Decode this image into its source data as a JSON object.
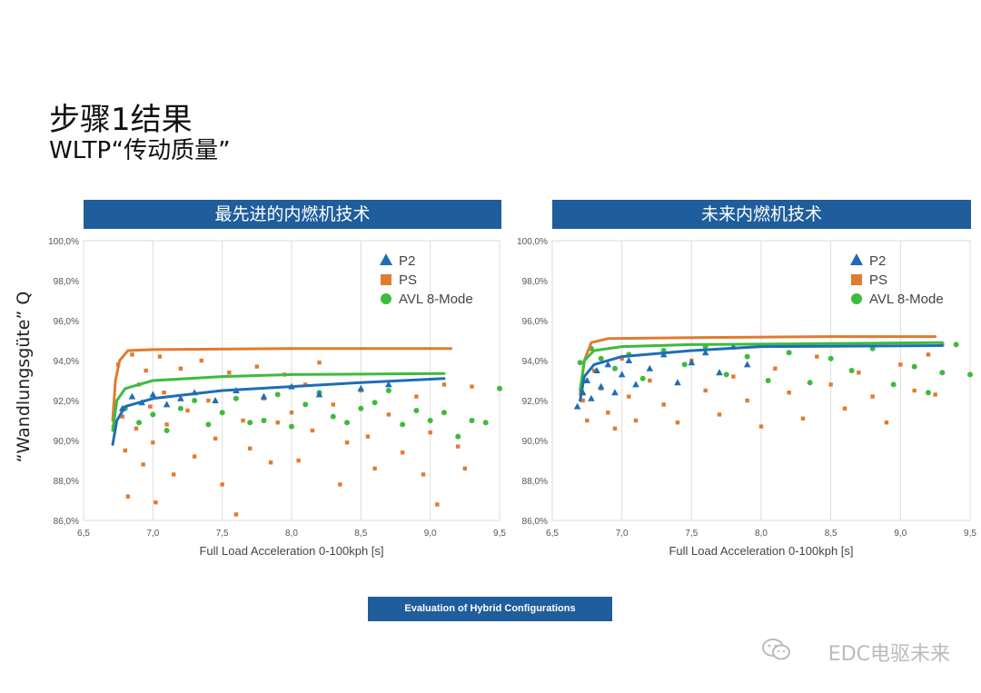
{
  "slide": {
    "title": "步骤1结果",
    "subtitle": "WLTP“传动质量”",
    "y_axis_label": "“Wandlungsgüte” Q",
    "footer": "Evaluation of Hybrid Configurations",
    "watermark": "EDC电驱未来"
  },
  "chart_data": [
    {
      "type": "scatter",
      "title": "最先进的内燃机技术",
      "xlabel": "Full Load Acceleration 0-100kph [s]",
      "ylabel": "“Wandlungsgüte” Q",
      "xlim": [
        6.5,
        9.5
      ],
      "ylim": [
        86.0,
        100.0
      ],
      "xticks": [
        "6,5",
        "7,0",
        "7,5",
        "8,0",
        "8,5",
        "9,0",
        "9,5"
      ],
      "yticks": [
        "86,0%",
        "88,0%",
        "90,0%",
        "92,0%",
        "94,0%",
        "96,0%",
        "98,0%",
        "100,0%"
      ],
      "grid": "vertical",
      "legend": "top-right",
      "series": [
        {
          "name": "P2",
          "marker": "triangle",
          "color": "#1f6db5",
          "points": [
            [
              6.78,
              91.6
            ],
            [
              6.85,
              92.2
            ],
            [
              6.92,
              91.9
            ],
            [
              7.0,
              92.3
            ],
            [
              7.1,
              91.8
            ],
            [
              7.2,
              92.1
            ],
            [
              7.3,
              92.4
            ],
            [
              7.45,
              92.0
            ],
            [
              7.6,
              92.5
            ],
            [
              7.8,
              92.2
            ],
            [
              8.0,
              92.7
            ],
            [
              8.2,
              92.3
            ],
            [
              8.5,
              92.6
            ],
            [
              8.7,
              92.8
            ]
          ],
          "fit": [
            [
              6.71,
              89.8
            ],
            [
              6.74,
              91.0
            ],
            [
              6.8,
              91.7
            ],
            [
              7.0,
              92.1
            ],
            [
              7.5,
              92.5
            ],
            [
              8.0,
              92.7
            ],
            [
              8.5,
              92.9
            ],
            [
              9.1,
              93.1
            ]
          ]
        },
        {
          "name": "PS",
          "marker": "square",
          "color": "#e07b31",
          "points": [
            [
              6.75,
              93.8
            ],
            [
              6.78,
              91.2
            ],
            [
              6.8,
              89.5
            ],
            [
              6.82,
              87.2
            ],
            [
              6.85,
              94.3
            ],
            [
              6.88,
              90.6
            ],
            [
              6.9,
              92.8
            ],
            [
              6.93,
              88.8
            ],
            [
              6.95,
              93.5
            ],
            [
              6.98,
              91.7
            ],
            [
              7.0,
              89.9
            ],
            [
              7.02,
              86.9
            ],
            [
              7.05,
              94.2
            ],
            [
              7.08,
              92.4
            ],
            [
              7.1,
              90.8
            ],
            [
              7.15,
              88.3
            ],
            [
              7.2,
              93.6
            ],
            [
              7.25,
              91.5
            ],
            [
              7.3,
              89.2
            ],
            [
              7.35,
              94.0
            ],
            [
              7.4,
              92.0
            ],
            [
              7.45,
              90.1
            ],
            [
              7.5,
              87.8
            ],
            [
              7.55,
              93.4
            ],
            [
              7.6,
              86.3
            ],
            [
              7.65,
              91.0
            ],
            [
              7.7,
              89.6
            ],
            [
              7.75,
              93.7
            ],
            [
              7.8,
              92.1
            ],
            [
              7.85,
              88.9
            ],
            [
              7.9,
              90.9
            ],
            [
              7.95,
              93.3
            ],
            [
              8.0,
              91.4
            ],
            [
              8.05,
              89.0
            ],
            [
              8.1,
              92.8
            ],
            [
              8.15,
              90.5
            ],
            [
              8.2,
              93.9
            ],
            [
              8.3,
              91.8
            ],
            [
              8.35,
              87.8
            ],
            [
              8.4,
              89.9
            ],
            [
              8.5,
              92.5
            ],
            [
              8.55,
              90.2
            ],
            [
              8.6,
              88.6
            ],
            [
              8.7,
              91.3
            ],
            [
              8.8,
              89.4
            ],
            [
              8.9,
              92.2
            ],
            [
              8.95,
              88.3
            ],
            [
              9.0,
              90.4
            ],
            [
              9.05,
              86.8
            ],
            [
              9.1,
              92.8
            ],
            [
              9.2,
              89.7
            ],
            [
              9.25,
              88.6
            ],
            [
              9.3,
              92.7
            ]
          ],
          "fit": [
            [
              6.71,
              91.0
            ],
            [
              6.73,
              93.0
            ],
            [
              6.76,
              94.0
            ],
            [
              6.82,
              94.5
            ],
            [
              7.0,
              94.55
            ],
            [
              8.0,
              94.6
            ],
            [
              9.15,
              94.6
            ]
          ]
        },
        {
          "name": "AVL 8-Mode",
          "marker": "circle",
          "color": "#3dbb3d",
          "points": [
            [
              6.72,
              90.7
            ],
            [
              6.8,
              91.6
            ],
            [
              6.9,
              90.9
            ],
            [
              7.0,
              91.3
            ],
            [
              7.1,
              90.5
            ],
            [
              7.2,
              91.6
            ],
            [
              7.3,
              92.0
            ],
            [
              7.4,
              90.8
            ],
            [
              7.5,
              91.4
            ],
            [
              7.6,
              92.1
            ],
            [
              7.7,
              90.9
            ],
            [
              7.8,
              91.0
            ],
            [
              7.9,
              92.3
            ],
            [
              8.0,
              90.7
            ],
            [
              8.1,
              91.8
            ],
            [
              8.2,
              92.4
            ],
            [
              8.3,
              91.2
            ],
            [
              8.4,
              90.9
            ],
            [
              8.5,
              91.6
            ],
            [
              8.6,
              91.9
            ],
            [
              8.7,
              92.5
            ],
            [
              8.8,
              90.8
            ],
            [
              8.9,
              91.5
            ],
            [
              9.0,
              91.0
            ],
            [
              9.1,
              91.4
            ],
            [
              9.2,
              90.2
            ],
            [
              9.3,
              91.0
            ],
            [
              9.4,
              90.9
            ],
            [
              9.5,
              92.6
            ]
          ],
          "fit": [
            [
              6.71,
              90.5
            ],
            [
              6.74,
              92.0
            ],
            [
              6.8,
              92.6
            ],
            [
              7.0,
              93.0
            ],
            [
              7.5,
              93.2
            ],
            [
              8.0,
              93.3
            ],
            [
              9.1,
              93.35
            ]
          ]
        }
      ]
    },
    {
      "type": "scatter",
      "title": "未来内燃机技术",
      "xlabel": "Full Load Acceleration 0-100kph [s]",
      "ylabel": "“Wandlungsgüte” Q",
      "xlim": [
        6.5,
        9.5
      ],
      "ylim": [
        86.0,
        100.0
      ],
      "xticks": [
        "6,5",
        "7,0",
        "7,5",
        "8,0",
        "8,5",
        "9,0",
        "9,5"
      ],
      "yticks": [
        "86,0%",
        "88,0%",
        "90,0%",
        "92,0%",
        "94,0%",
        "96,0%",
        "98,0%",
        "100,0%"
      ],
      "grid": "vertical",
      "legend": "top-right",
      "series": [
        {
          "name": "P2",
          "marker": "triangle",
          "color": "#1f6db5",
          "points": [
            [
              6.68,
              91.7
            ],
            [
              6.72,
              92.4
            ],
            [
              6.75,
              93.0
            ],
            [
              6.78,
              92.1
            ],
            [
              6.82,
              93.5
            ],
            [
              6.85,
              92.7
            ],
            [
              6.9,
              93.8
            ],
            [
              6.95,
              92.4
            ],
            [
              7.0,
              93.3
            ],
            [
              7.05,
              94.0
            ],
            [
              7.1,
              92.8
            ],
            [
              7.2,
              93.6
            ],
            [
              7.3,
              94.3
            ],
            [
              7.4,
              92.9
            ],
            [
              7.5,
              93.9
            ],
            [
              7.6,
              94.4
            ],
            [
              7.7,
              93.4
            ],
            [
              7.8,
              94.7
            ],
            [
              7.9,
              93.8
            ]
          ],
          "fit": [
            [
              6.7,
              92.0
            ],
            [
              6.73,
              93.2
            ],
            [
              6.8,
              93.8
            ],
            [
              7.0,
              94.2
            ],
            [
              7.5,
              94.5
            ],
            [
              8.0,
              94.7
            ],
            [
              9.3,
              94.75
            ]
          ]
        },
        {
          "name": "PS",
          "marker": "square",
          "color": "#e07b31",
          "points": [
            [
              6.72,
              92.0
            ],
            [
              6.75,
              91.0
            ],
            [
              6.8,
              93.5
            ],
            [
              6.85,
              92.6
            ],
            [
              6.9,
              91.4
            ],
            [
              6.95,
              90.6
            ],
            [
              7.0,
              94.1
            ],
            [
              7.05,
              92.2
            ],
            [
              7.1,
              91.0
            ],
            [
              7.2,
              93.0
            ],
            [
              7.3,
              91.8
            ],
            [
              7.4,
              90.9
            ],
            [
              7.5,
              94.0
            ],
            [
              7.6,
              92.5
            ],
            [
              7.7,
              91.3
            ],
            [
              7.8,
              93.2
            ],
            [
              7.9,
              92.0
            ],
            [
              8.0,
              90.7
            ],
            [
              8.1,
              93.6
            ],
            [
              8.2,
              92.4
            ],
            [
              8.3,
              91.1
            ],
            [
              8.4,
              94.2
            ],
            [
              8.5,
              92.8
            ],
            [
              8.6,
              91.6
            ],
            [
              8.7,
              93.4
            ],
            [
              8.8,
              92.2
            ],
            [
              8.9,
              90.9
            ],
            [
              9.0,
              93.8
            ],
            [
              9.1,
              92.5
            ],
            [
              9.2,
              94.3
            ],
            [
              9.25,
              92.3
            ],
            [
              9.3,
              94.8
            ]
          ],
          "fit": [
            [
              6.7,
              92.3
            ],
            [
              6.73,
              94.0
            ],
            [
              6.78,
              94.9
            ],
            [
              6.9,
              95.1
            ],
            [
              7.5,
              95.15
            ],
            [
              8.5,
              95.2
            ],
            [
              9.25,
              95.2
            ]
          ]
        },
        {
          "name": "AVL 8-Mode",
          "marker": "circle",
          "color": "#3dbb3d",
          "points": [
            [
              6.7,
              93.9
            ],
            [
              6.78,
              94.6
            ],
            [
              6.85,
              94.1
            ],
            [
              6.95,
              93.6
            ],
            [
              7.05,
              94.3
            ],
            [
              7.15,
              93.1
            ],
            [
              7.3,
              94.5
            ],
            [
              7.45,
              93.8
            ],
            [
              7.6,
              94.7
            ],
            [
              7.75,
              93.3
            ],
            [
              7.9,
              94.2
            ],
            [
              8.05,
              93.0
            ],
            [
              8.2,
              94.4
            ],
            [
              8.35,
              92.9
            ],
            [
              8.5,
              94.1
            ],
            [
              8.65,
              93.5
            ],
            [
              8.8,
              94.6
            ],
            [
              8.95,
              92.8
            ],
            [
              9.1,
              93.7
            ],
            [
              9.2,
              92.4
            ],
            [
              9.3,
              93.4
            ],
            [
              9.4,
              94.8
            ],
            [
              9.5,
              93.3
            ]
          ],
          "fit": [
            [
              6.7,
              92.5
            ],
            [
              6.73,
              94.0
            ],
            [
              6.8,
              94.5
            ],
            [
              7.0,
              94.7
            ],
            [
              7.5,
              94.8
            ],
            [
              8.5,
              94.85
            ],
            [
              9.3,
              94.9
            ]
          ]
        }
      ]
    }
  ]
}
